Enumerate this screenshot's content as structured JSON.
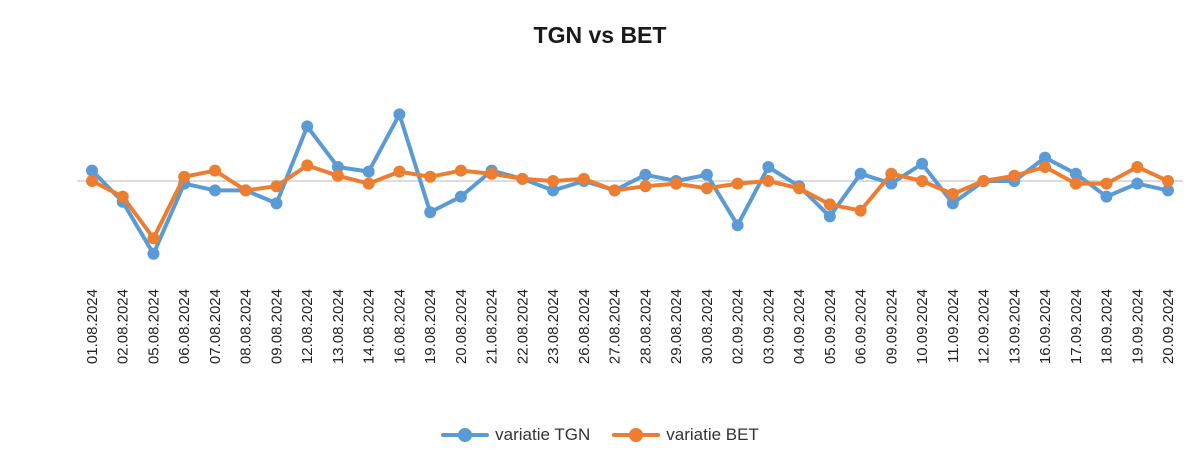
{
  "chart_data": {
    "type": "line",
    "title": "TGN vs BET",
    "xlabel": "",
    "ylabel": "",
    "y_axis_labels_shown": false,
    "ylim": [
      -1.6,
      1.4
    ],
    "grid": false,
    "zero_line": true,
    "legend_position": "bottom",
    "categories": [
      "01.08.2024",
      "02.08.2024",
      "05.08.2024",
      "06.08.2024",
      "07.08.2024",
      "08.08.2024",
      "09.08.2024",
      "12.08.2024",
      "13.08.2024",
      "14.08.2024",
      "16.08.2024",
      "19.08.2024",
      "20.08.2024",
      "21.08.2024",
      "22.08.2024",
      "23.08.2024",
      "26.08.2024",
      "27.08.2024",
      "28.08.2024",
      "29.08.2024",
      "30.08.2024",
      "02.09.2024",
      "03.09.2024",
      "04.09.2024",
      "05.09.2024",
      "06.09.2024",
      "09.09.2024",
      "10.09.2024",
      "11.09.2024",
      "12.09.2024",
      "13.09.2024",
      "16.09.2024",
      "17.09.2024",
      "18.09.2024",
      "19.09.2024",
      "20.09.2024"
    ],
    "series": [
      {
        "name": "variatie TGN",
        "color": "#5B9BD5",
        "values": [
          0.2,
          -0.4,
          -1.4,
          -0.05,
          -0.18,
          -0.18,
          -0.43,
          1.05,
          0.27,
          0.18,
          1.28,
          -0.6,
          -0.3,
          0.2,
          0.04,
          -0.18,
          0.0,
          -0.18,
          0.12,
          0.0,
          0.12,
          -0.85,
          0.27,
          -0.1,
          -0.68,
          0.14,
          -0.05,
          0.33,
          -0.43,
          0.0,
          0.0,
          0.45,
          0.14,
          -0.3,
          -0.05,
          -0.18
        ]
      },
      {
        "name": "variatie BET",
        "color": "#ED7D31",
        "values": [
          0.0,
          -0.3,
          -1.1,
          0.08,
          0.2,
          -0.18,
          -0.1,
          0.3,
          0.1,
          -0.05,
          0.18,
          0.08,
          0.2,
          0.14,
          0.04,
          0.0,
          0.04,
          -0.18,
          -0.1,
          -0.05,
          -0.14,
          -0.05,
          0.0,
          -0.14,
          -0.45,
          -0.57,
          0.14,
          0.0,
          -0.25,
          0.0,
          0.1,
          0.27,
          -0.05,
          -0.05,
          0.27,
          0.0
        ]
      }
    ]
  }
}
